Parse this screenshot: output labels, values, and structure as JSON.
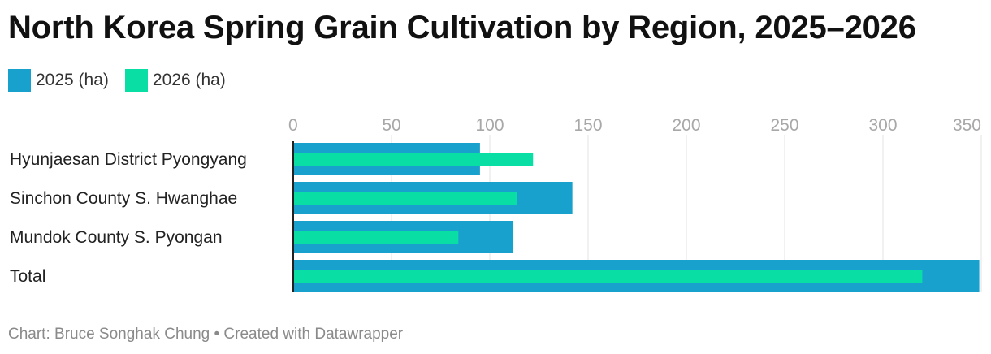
{
  "chart_data": {
    "type": "bar",
    "orientation": "horizontal",
    "title": "North Korea Spring Grain Cultivation by Region, 2025–2026",
    "categories": [
      "Hyunjaesan District Pyongyang",
      "Sinchon County S. Hwanghae",
      "Mundok County S. Pyongan",
      "Total"
    ],
    "series": [
      {
        "name": "2025 (ha)",
        "color": "#18a1cd",
        "values": [
          95,
          142,
          112,
          349
        ]
      },
      {
        "name": "2026 (ha)",
        "color": "#09dfa5",
        "values": [
          122,
          114,
          84,
          320
        ]
      }
    ],
    "xlim": [
      0,
      350
    ],
    "xticks": [
      "0",
      "50",
      "100",
      "150",
      "200",
      "250",
      "300",
      "350"
    ],
    "grid": true,
    "legend_position": "top-left"
  },
  "footer": "Chart: Bruce Songhak Chung • Created with Datawrapper"
}
